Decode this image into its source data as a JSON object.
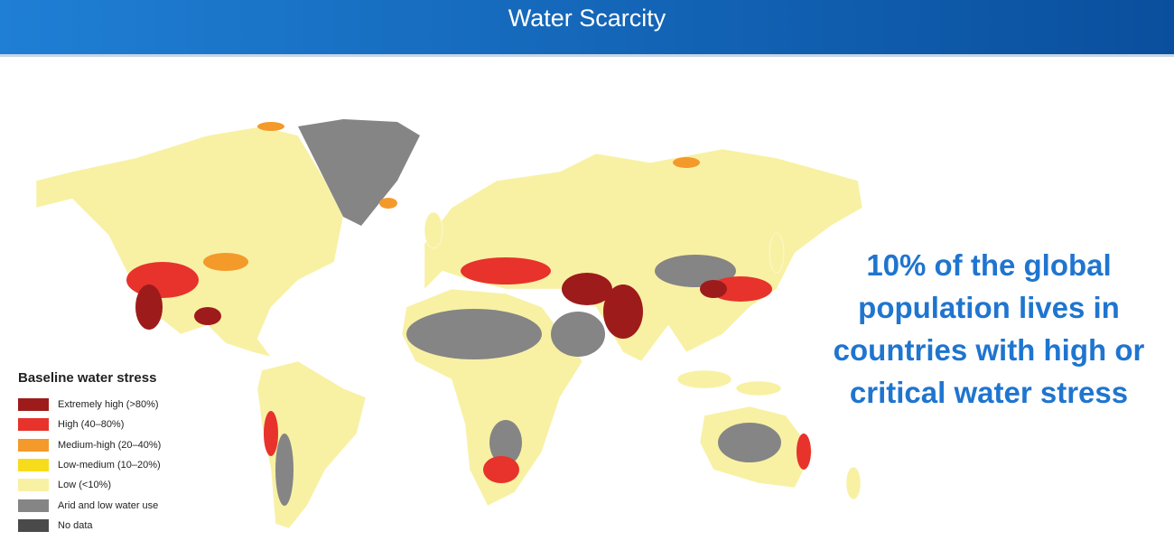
{
  "header": {
    "title": "Water Scarcity"
  },
  "legend": {
    "title": "Baseline water stress",
    "items": [
      {
        "label": "Extremely high (>80%)",
        "color": "#9e1b1b"
      },
      {
        "label": "High (40–80%)",
        "color": "#e8322c"
      },
      {
        "label": "Medium-high (20–40%)",
        "color": "#f39a2b"
      },
      {
        "label": "Low-medium (10–20%)",
        "color": "#f7dc1c"
      },
      {
        "label": "Low (<10%)",
        "color": "#f8f1a4"
      },
      {
        "label": "Arid and low water use",
        "color": "#858585"
      },
      {
        "label": "No data",
        "color": "#4a4a4a"
      }
    ]
  },
  "callout": {
    "lines": [
      "10% of the global",
      "population lives in",
      "countries with high or",
      "critical water stress"
    ]
  }
}
